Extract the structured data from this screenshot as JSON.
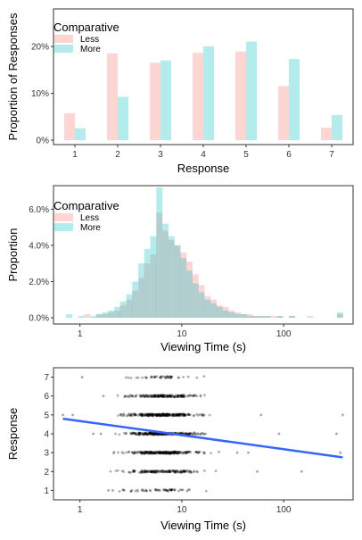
{
  "colors": {
    "less": "#F8766D",
    "more": "#00BFC4",
    "trend": "#3366FF",
    "points": "#000000"
  },
  "chart_data": [
    {
      "type": "bar",
      "xlabel": "Response",
      "ylabel": "Proportion of Responses",
      "categories": [
        "1",
        "2",
        "3",
        "4",
        "5",
        "6",
        "7"
      ],
      "ylim": [
        0,
        0.29
      ],
      "yticks": [
        0,
        0.1,
        0.2
      ],
      "ytick_labels": [
        "0%",
        "10%",
        "20%"
      ],
      "legend": {
        "title": "Comparative",
        "position": "top-left"
      },
      "series": [
        {
          "name": "Less",
          "values": [
            0.067,
            0.195,
            0.175,
            0.196,
            0.199,
            0.125,
            0.036
          ]
        },
        {
          "name": "More",
          "values": [
            0.035,
            0.102,
            0.18,
            0.21,
            0.22,
            0.183,
            0.063
          ]
        }
      ]
    },
    {
      "type": "bar",
      "subtype": "histogram",
      "xlabel": "Viewing Time (s)",
      "ylabel": "Proportion",
      "x_scale": "log",
      "xlim": [
        0.55,
        480
      ],
      "xticks": [
        1,
        10,
        100
      ],
      "xtick_labels": [
        "1",
        "10",
        "100"
      ],
      "ylim": [
        0,
        0.073
      ],
      "yticks": [
        0,
        0.02,
        0.04,
        0.06
      ],
      "ytick_labels": [
        "0.0%",
        "2.0%",
        "4.0%",
        "6.0%"
      ],
      "legend": {
        "title": "Comparative",
        "position": "top-left"
      },
      "series": [
        {
          "name": "Less",
          "bins": [
            0.73,
            0.84,
            0.96,
            1.1,
            1.26,
            1.44,
            1.65,
            1.89,
            2.17,
            2.48,
            2.85,
            3.26,
            3.74,
            4.28,
            4.91,
            5.62,
            6.44,
            7.38,
            8.46,
            9.69,
            11.1,
            12.72,
            14.58,
            16.7,
            19.14,
            21.93,
            25.13,
            28.8,
            33.0,
            37.8,
            43.3,
            49.6,
            56.9,
            65.2,
            74.7,
            85.6,
            98.1,
            112.4,
            128.8,
            147.6,
            169.1,
            193.7,
            222,
            254.4,
            291.5,
            334
          ],
          "values": [
            0,
            0,
            0,
            0.002,
            0,
            0.002,
            0.002,
            0.003,
            0.004,
            0.007,
            0.01,
            0.015,
            0.022,
            0.03,
            0.035,
            0.058,
            0.048,
            0.043,
            0.04,
            0.036,
            0.031,
            0.024,
            0.018,
            0.012,
            0.01,
            0.007,
            0.006,
            0.004,
            0.003,
            0.002,
            0.002,
            0.001,
            0.001,
            0.001,
            0.001,
            0.001,
            0,
            0.001,
            0,
            0,
            0.001,
            0,
            0,
            0,
            0,
            0.002
          ]
        },
        {
          "name": "More",
          "bins": [
            0.73,
            0.84,
            0.96,
            1.1,
            1.26,
            1.44,
            1.65,
            1.89,
            2.17,
            2.48,
            2.85,
            3.26,
            3.74,
            4.28,
            4.91,
            5.62,
            6.44,
            7.38,
            8.46,
            9.69,
            11.1,
            12.72,
            14.58,
            16.7,
            19.14,
            21.93,
            25.13,
            28.8,
            33.0,
            37.8,
            43.3,
            49.6,
            56.9,
            65.2,
            74.7,
            85.6,
            98.1,
            112.4,
            128.8,
            147.6,
            169.1,
            193.7,
            222,
            254.4,
            291.5,
            334
          ],
          "values": [
            0.002,
            0,
            0.001,
            0,
            0.001,
            0.002,
            0.003,
            0.004,
            0.006,
            0.009,
            0.013,
            0.02,
            0.03,
            0.038,
            0.045,
            0.072,
            0.052,
            0.045,
            0.04,
            0.033,
            0.026,
            0.019,
            0.014,
            0.01,
            0.008,
            0.006,
            0.004,
            0.003,
            0.002,
            0.002,
            0.001,
            0.001,
            0.001,
            0.001,
            0,
            0.001,
            0,
            0.001,
            0,
            0,
            0,
            0,
            0,
            0,
            0,
            0.003
          ]
        }
      ]
    },
    {
      "type": "scatter",
      "xlabel": "Viewing Time (s)",
      "ylabel": "Response",
      "x_scale": "log",
      "xlim": [
        0.55,
        480
      ],
      "xticks": [
        1,
        10,
        100
      ],
      "xtick_labels": [
        "1",
        "10",
        "100"
      ],
      "ylim": [
        0.5,
        7.5
      ],
      "yticks": [
        1,
        2,
        3,
        4,
        5,
        6,
        7
      ],
      "ytick_labels": [
        "1",
        "2",
        "3",
        "4",
        "5",
        "6",
        "7"
      ],
      "points_per_level": [
        55,
        150,
        240,
        240,
        250,
        170,
        45
      ],
      "x_median": 6.5,
      "x_spread_log10": 0.3,
      "outliers": [
        {
          "x": 0.68,
          "y": 5
        },
        {
          "x": 0.85,
          "y": 5
        },
        {
          "x": 1.05,
          "y": 7
        },
        {
          "x": 1.35,
          "y": 4
        },
        {
          "x": 1.6,
          "y": 4
        },
        {
          "x": 1.9,
          "y": 1
        },
        {
          "x": 2.1,
          "y": 1
        },
        {
          "x": 1.7,
          "y": 6
        },
        {
          "x": 35,
          "y": 3
        },
        {
          "x": 45,
          "y": 3
        },
        {
          "x": 55,
          "y": 2
        },
        {
          "x": 60,
          "y": 5
        },
        {
          "x": 90,
          "y": 4
        },
        {
          "x": 150,
          "y": 2
        },
        {
          "x": 330,
          "y": 4
        },
        {
          "x": 360,
          "y": 3
        },
        {
          "x": 380,
          "y": 5
        }
      ],
      "trend": {
        "x": [
          0.68,
          380
        ],
        "y": [
          4.8,
          2.75
        ]
      }
    }
  ]
}
